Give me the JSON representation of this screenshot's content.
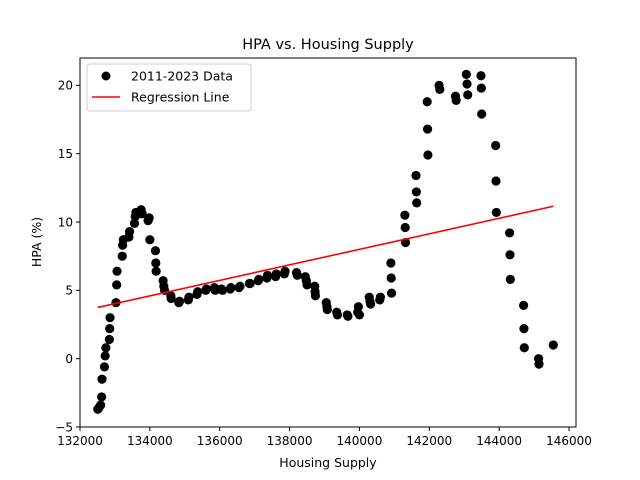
{
  "chart_data": {
    "type": "scatter",
    "title": "HPA vs. Housing Supply",
    "xlabel": "Housing Supply",
    "ylabel": "HPA (%)",
    "xlim": [
      132000,
      146200
    ],
    "ylim": [
      -5,
      22
    ],
    "x_ticks": [
      {
        "value": 132000,
        "label": "132000"
      },
      {
        "value": 134000,
        "label": "134000"
      },
      {
        "value": 136000,
        "label": "136000"
      },
      {
        "value": 138000,
        "label": "138000"
      },
      {
        "value": 140000,
        "label": "140000"
      },
      {
        "value": 142000,
        "label": "142000"
      },
      {
        "value": 144000,
        "label": "144000"
      },
      {
        "value": 146000,
        "label": "146000"
      }
    ],
    "y_ticks": [
      {
        "value": -5,
        "label": "−5"
      },
      {
        "value": 0,
        "label": "0"
      },
      {
        "value": 5,
        "label": "5"
      },
      {
        "value": 10,
        "label": "10"
      },
      {
        "value": 15,
        "label": "15"
      },
      {
        "value": 20,
        "label": "20"
      }
    ],
    "grid": false,
    "legend": {
      "placement": "upper-left",
      "entries": [
        {
          "label": "2011-2023 Data",
          "marker": "circle",
          "color": "#000000"
        },
        {
          "label": "Regression Line",
          "marker": "line",
          "color": "#ff0000"
        }
      ]
    },
    "series": [
      {
        "kind": "scatter",
        "color": "#000000",
        "points": [
          [
            132510,
            -3.7
          ],
          [
            132540,
            -3.6
          ],
          [
            132590,
            -3.4
          ],
          [
            132620,
            -2.8
          ],
          [
            132630,
            -1.5
          ],
          [
            132700,
            -0.6
          ],
          [
            132720,
            0.2
          ],
          [
            132740,
            0.8
          ],
          [
            132840,
            1.4
          ],
          [
            132850,
            2.2
          ],
          [
            132860,
            3.0
          ],
          [
            133030,
            4.1
          ],
          [
            133050,
            5.4
          ],
          [
            133060,
            6.4
          ],
          [
            133210,
            7.5
          ],
          [
            133220,
            8.3
          ],
          [
            133240,
            8.7
          ],
          [
            133400,
            8.9
          ],
          [
            133420,
            9.3
          ],
          [
            133560,
            9.9
          ],
          [
            133580,
            10.4
          ],
          [
            133600,
            10.7
          ],
          [
            133750,
            10.9
          ],
          [
            133780,
            10.6
          ],
          [
            133950,
            10.1
          ],
          [
            133980,
            10.3
          ],
          [
            134000,
            8.7
          ],
          [
            134160,
            7.9
          ],
          [
            134170,
            7.0
          ],
          [
            134180,
            6.4
          ],
          [
            134380,
            5.7
          ],
          [
            134400,
            5.3
          ],
          [
            134420,
            5.0
          ],
          [
            134600,
            4.6
          ],
          [
            134610,
            4.4
          ],
          [
            134830,
            4.1
          ],
          [
            134850,
            4.2
          ],
          [
            135100,
            4.3
          ],
          [
            135120,
            4.5
          ],
          [
            135350,
            4.7
          ],
          [
            135370,
            4.9
          ],
          [
            135600,
            5.0
          ],
          [
            135620,
            5.1
          ],
          [
            135850,
            5.2
          ],
          [
            135870,
            5.0
          ],
          [
            136050,
            5.1
          ],
          [
            136080,
            5.0
          ],
          [
            136300,
            5.1
          ],
          [
            136320,
            5.2
          ],
          [
            136550,
            5.2
          ],
          [
            136580,
            5.3
          ],
          [
            136850,
            5.5
          ],
          [
            136870,
            5.5
          ],
          [
            137100,
            5.7
          ],
          [
            137120,
            5.8
          ],
          [
            137350,
            5.9
          ],
          [
            137370,
            6.1
          ],
          [
            137600,
            6.0
          ],
          [
            137620,
            6.2
          ],
          [
            137850,
            6.2
          ],
          [
            137870,
            6.4
          ],
          [
            138200,
            6.3
          ],
          [
            138220,
            6.1
          ],
          [
            138450,
            6.0
          ],
          [
            138480,
            5.7
          ],
          [
            138500,
            5.4
          ],
          [
            138720,
            5.3
          ],
          [
            138730,
            4.9
          ],
          [
            138740,
            4.6
          ],
          [
            139050,
            4.1
          ],
          [
            139070,
            3.8
          ],
          [
            139080,
            3.6
          ],
          [
            139350,
            3.4
          ],
          [
            139370,
            3.2
          ],
          [
            139650,
            3.2
          ],
          [
            139670,
            3.1
          ],
          [
            139950,
            3.4
          ],
          [
            139970,
            3.8
          ],
          [
            140000,
            3.2
          ],
          [
            140280,
            4.5
          ],
          [
            140300,
            4.2
          ],
          [
            140320,
            4.0
          ],
          [
            140580,
            4.3
          ],
          [
            140600,
            4.5
          ],
          [
            140900,
            7.0
          ],
          [
            140910,
            5.9
          ],
          [
            140920,
            4.8
          ],
          [
            141300,
            10.5
          ],
          [
            141310,
            9.6
          ],
          [
            141320,
            8.5
          ],
          [
            141620,
            13.4
          ],
          [
            141630,
            12.2
          ],
          [
            141640,
            11.4
          ],
          [
            141940,
            18.8
          ],
          [
            141950,
            16.8
          ],
          [
            141960,
            14.9
          ],
          [
            142280,
            20.0
          ],
          [
            142300,
            19.7
          ],
          [
            142750,
            19.2
          ],
          [
            142770,
            18.9
          ],
          [
            143060,
            20.8
          ],
          [
            143080,
            20.1
          ],
          [
            143100,
            19.3
          ],
          [
            143480,
            20.7
          ],
          [
            143490,
            19.8
          ],
          [
            143500,
            17.9
          ],
          [
            143900,
            15.6
          ],
          [
            143910,
            13.0
          ],
          [
            143920,
            10.7
          ],
          [
            144300,
            9.2
          ],
          [
            144310,
            7.6
          ],
          [
            144320,
            5.8
          ],
          [
            144700,
            3.9
          ],
          [
            144710,
            2.2
          ],
          [
            144720,
            0.8
          ],
          [
            145130,
            0.0
          ],
          [
            145140,
            -0.4
          ],
          [
            145550,
            1.0
          ]
        ]
      },
      {
        "kind": "line",
        "color": "#ff0000",
        "points": [
          [
            132510,
            3.75
          ],
          [
            145550,
            11.15
          ]
        ]
      }
    ]
  }
}
